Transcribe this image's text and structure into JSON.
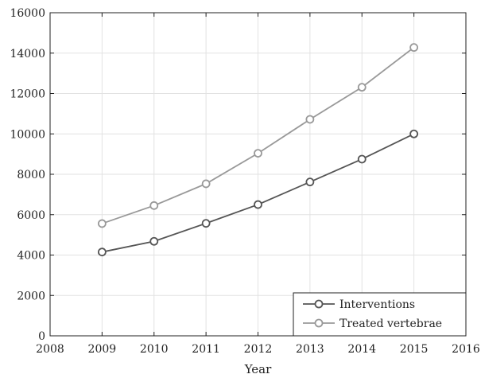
{
  "chart_data": {
    "type": "line",
    "title": "",
    "xlabel": "Year",
    "ylabel": "",
    "xlim": [
      2008,
      2016
    ],
    "ylim": [
      0,
      16000
    ],
    "xticks": [
      "2008",
      "2009",
      "2010",
      "2011",
      "2012",
      "2013",
      "2014",
      "2015",
      "2016"
    ],
    "yticks": [
      "0",
      "2000",
      "4000",
      "6000",
      "8000",
      "10000",
      "12000",
      "14000",
      "16000"
    ],
    "grid": true,
    "legend_position": "bottom-right",
    "x": [
      2009,
      2010,
      2011,
      2012,
      2013,
      2014,
      2015
    ],
    "series": [
      {
        "name": "Interventions",
        "color": "#555555",
        "marker": "circle",
        "values": [
          4150,
          4680,
          5570,
          6500,
          7620,
          8750,
          10000
        ]
      },
      {
        "name": "Treated vertebrae",
        "color": "#999999",
        "marker": "circle",
        "values": [
          5560,
          6450,
          7530,
          9040,
          10720,
          12310,
          14280
        ]
      }
    ]
  }
}
